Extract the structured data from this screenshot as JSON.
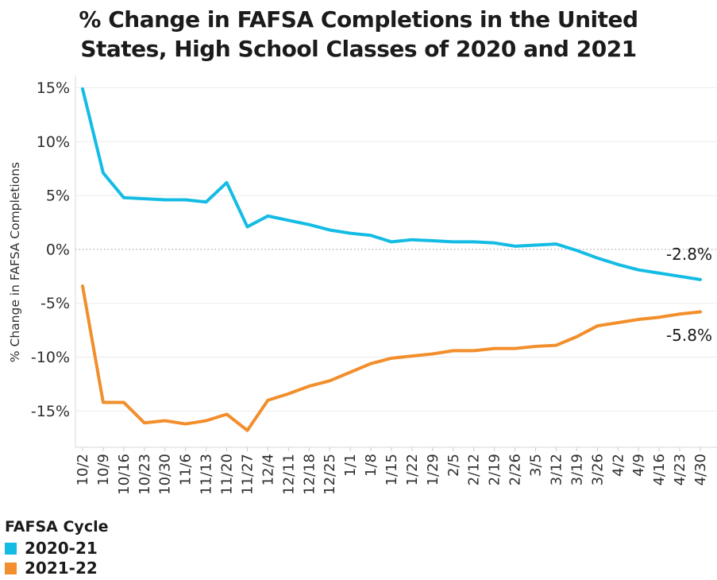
{
  "title_lines": [
    "% Change in FAFSA Completions in the United",
    "States, High School Classes of 2020 and 2021"
  ],
  "legend": {
    "title": "FAFSA Cycle"
  },
  "annotations": [
    {
      "text": "-2.8%",
      "series": "2020-21"
    },
    {
      "text": "-5.8%",
      "series": "2021-22"
    }
  ],
  "chart_data": {
    "type": "line",
    "title": "% Change in FAFSA Completions in the United States, High School Classes of 2020 and 2021",
    "xlabel": "",
    "ylabel": "% Change in FAFSA Completions",
    "x": [
      "10/2",
      "10/9",
      "10/16",
      "10/23",
      "10/30",
      "11/6",
      "11/13",
      "11/20",
      "11/27",
      "12/4",
      "12/11",
      "12/18",
      "12/25",
      "1/1",
      "1/8",
      "1/15",
      "1/22",
      "1/29",
      "2/5",
      "2/12",
      "2/19",
      "2/26",
      "3/5",
      "3/12",
      "3/19",
      "3/26",
      "4/2",
      "4/9",
      "4/16",
      "4/23",
      "4/30"
    ],
    "yticks": [
      {
        "label": "15%",
        "value": 15
      },
      {
        "label": "10%",
        "value": 10
      },
      {
        "label": "5%",
        "value": 5
      },
      {
        "label": "0%",
        "value": 0
      },
      {
        "label": "-5%",
        "value": -5
      },
      {
        "label": "-10%",
        "value": -10
      },
      {
        "label": "-15%",
        "value": -15
      }
    ],
    "ylim": [
      -18.4,
      16.1
    ],
    "grid": true,
    "zero_line": "dotted",
    "legend_position": "bottom-left",
    "legend_title": "FAFSA Cycle",
    "series": [
      {
        "name": "2020-21",
        "color": "#14BCE4",
        "values": [
          14.9,
          7.1,
          4.8,
          4.7,
          4.6,
          4.6,
          4.4,
          6.2,
          2.1,
          3.1,
          2.7,
          2.3,
          1.8,
          1.5,
          1.3,
          0.7,
          0.9,
          0.8,
          0.7,
          0.7,
          0.6,
          0.3,
          0.4,
          0.5,
          -0.1,
          -0.8,
          -1.4,
          -1.9,
          -2.2,
          -2.5,
          -2.8
        ],
        "end_label": "-2.8%"
      },
      {
        "name": "2021-22",
        "color": "#F28E2B",
        "values": [
          -3.4,
          -14.2,
          -14.2,
          -16.1,
          -15.9,
          -16.2,
          -15.9,
          -15.3,
          -16.8,
          -14.0,
          -13.4,
          -12.7,
          -12.2,
          -11.4,
          -10.6,
          -10.1,
          -9.9,
          -9.7,
          -9.4,
          -9.4,
          -9.2,
          -9.2,
          -9.0,
          -8.9,
          -8.1,
          -7.1,
          -6.8,
          -6.5,
          -6.3,
          -6.0,
          -5.8
        ],
        "end_label": "-5.8%"
      }
    ]
  }
}
